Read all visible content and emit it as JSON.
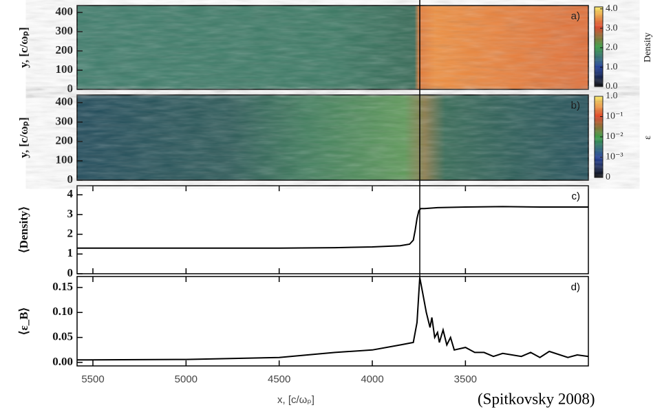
{
  "chart_data": [
    {
      "type": "heatmap",
      "label": "a)",
      "ylabel": "y, [c/ωₚ]",
      "xlim": [
        5585,
        2840
      ],
      "ylim": [
        0,
        436
      ],
      "yticks": [
        0,
        100,
        200,
        300,
        400
      ],
      "colorbar_label": "Density",
      "colorbar_scale": "linear",
      "clim": [
        0,
        4.1
      ],
      "colorbar_ticks": [
        {
          "value": 0,
          "label": "0.0"
        },
        {
          "value": 1,
          "label": "1.0"
        },
        {
          "value": 2,
          "label": "2.0"
        },
        {
          "value": 3,
          "label": "3.0"
        },
        {
          "value": 4,
          "label": "4.0"
        }
      ]
    },
    {
      "type": "heatmap",
      "label": "b)",
      "ylabel": "y, [c/ωₚ]",
      "xlim": [
        5585,
        2840
      ],
      "ylim": [
        0,
        440
      ],
      "yticks": [
        0,
        100,
        200,
        300,
        400
      ],
      "colorbar_label": "ε",
      "colorbar_scale": "symlog",
      "linthresh": 0.001,
      "clim": [
        0,
        1
      ],
      "colorbar_ticks": [
        0,
        {
          "value": 0.001,
          "label": "10⁻³"
        },
        {
          "value": 0.01,
          "label": "10⁻²"
        },
        {
          "value": 0.1,
          "label": "10⁻¹"
        },
        {
          "value": 1,
          "label": "1.0"
        }
      ]
    },
    {
      "type": "line",
      "label": "c)",
      "ylabel": "⟨Density⟩",
      "color": "#000000",
      "xlim": [
        5585,
        2840
      ],
      "ylim": [
        0,
        4.46
      ],
      "yticks": [
        0,
        1,
        2,
        3,
        4
      ],
      "xticks": [
        5500,
        5000,
        4500,
        4000,
        3500
      ],
      "x": [
        5585,
        5000,
        4500,
        4200,
        4000,
        3850,
        3800,
        3780,
        3770,
        3760,
        3750,
        3740,
        3720,
        3650,
        3500,
        3300,
        3100,
        2840
      ],
      "values": [
        1.3,
        1.3,
        1.3,
        1.32,
        1.36,
        1.42,
        1.5,
        1.7,
        2.2,
        2.8,
        3.2,
        3.3,
        3.3,
        3.35,
        3.38,
        3.4,
        3.38,
        3.38
      ]
    },
    {
      "type": "line",
      "label": "d)",
      "ylabel": "⟨ε_B⟩",
      "color": "#000000",
      "xlim": [
        5585,
        2840
      ],
      "ylim": [
        -0.007,
        0.172
      ],
      "yticks": [
        {
          "value": 0,
          "label": "0.00"
        },
        0.05,
        {
          "value": 0.1,
          "label": "0.10"
        },
        0.15
      ],
      "xticks": [
        5500,
        5000,
        4500,
        4000,
        3500
      ],
      "xlabel": "x, [c/ωₚ]",
      "x": [
        5585,
        5000,
        4500,
        4200,
        4000,
        3850,
        3780,
        3760,
        3745,
        3730,
        3710,
        3690,
        3680,
        3665,
        3650,
        3640,
        3620,
        3600,
        3580,
        3560,
        3500,
        3450,
        3400,
        3350,
        3300,
        3200,
        3150,
        3100,
        3050,
        2950,
        2900,
        2840
      ],
      "values": [
        0.005,
        0.006,
        0.01,
        0.02,
        0.025,
        0.035,
        0.04,
        0.08,
        0.17,
        0.14,
        0.1,
        0.07,
        0.09,
        0.05,
        0.06,
        0.04,
        0.065,
        0.035,
        0.05,
        0.025,
        0.03,
        0.02,
        0.02,
        0.012,
        0.018,
        0.012,
        0.02,
        0.01,
        0.022,
        0.01,
        0.015,
        0.012
      ]
    }
  ],
  "citation": "(Spitkovsky 2008)"
}
